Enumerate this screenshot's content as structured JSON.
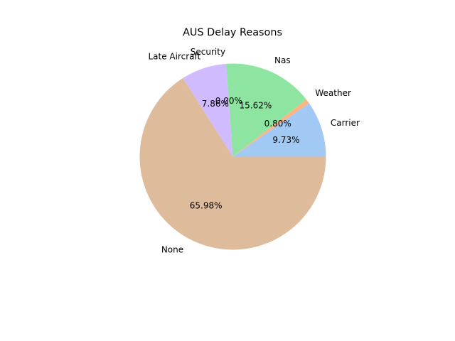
{
  "chart_data": {
    "type": "pie",
    "title": "AUS Delay Reasons",
    "categories": [
      "Carrier",
      "Weather",
      "Nas",
      "Security",
      "Late Aircraft",
      "None"
    ],
    "values": [
      9.73,
      0.8,
      15.62,
      0.0,
      7.86,
      65.98
    ],
    "value_labels": [
      "9.73%",
      "0.80%",
      "15.62%",
      "0.00%",
      "7.86%",
      "65.98%"
    ],
    "colors": [
      "#a1c9f4",
      "#ffb482",
      "#8de5a1",
      "#ff9f9b",
      "#d0bbff",
      "#debb9b"
    ],
    "start_angle_deg": 0,
    "direction": "counterclockwise",
    "legend": "none"
  }
}
